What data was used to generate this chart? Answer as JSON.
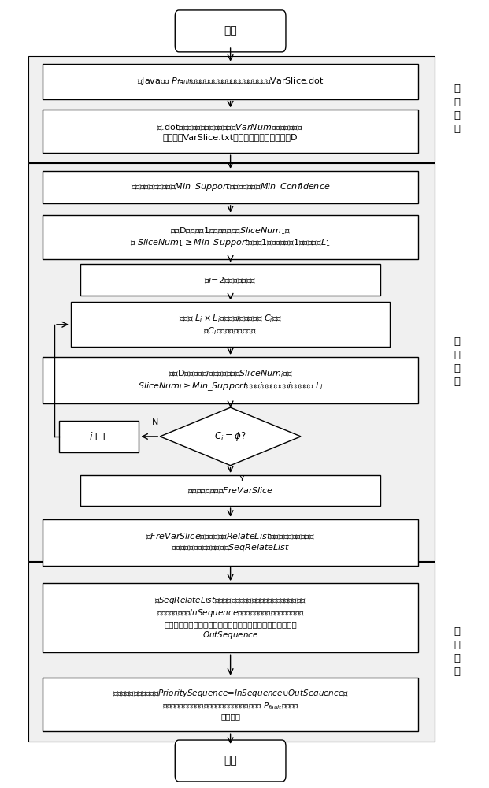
{
  "bg_color": "#ffffff",
  "fig_w": 6.21,
  "fig_h": 10.0,
  "dpi": 100,
  "xlim": [
    0,
    1
  ],
  "ylim": [
    0,
    1
  ],
  "start_text": "开始",
  "end_text": "结束",
  "box1_text_line1": "对Java程序 $P_{fault}$预处理，进行变量切片得到程序切片数据VarSlice.dot",
  "box2_text": "从.dot文件中依次提取变量切片行号$\\mathit{VarNum}$，构成变量切片\n行号信息VarSlice.txt，并将其作为事物数据库D",
  "box3_text": "假设最小支持度计数为$\\mathit{Min\\_Support}$，最小置信度为$\\mathit{Min\\_Confidence}$",
  "box4_text": "扭描D累计候选1项集的支持计数$\\mathit{SliceNum}_1$，\n由 $\\mathit{SliceNum}_1\\geq \\mathit{Min\\_Support}$的候选1项集确定频繁1项集的集合$L_1$",
  "box5_text": "令$i$=2，开始逐层搜索",
  "box6_text": "由连接 $L_i\\times L_i$产生候选$i$项集的集合 $C_i$，并\n从$C_i$中删除非频繁集候选",
  "box7_text": "扭描D，累计候选$i$项集的支持计数$\\mathit{SliceNum}_i$，由\n$\\mathit{SliceNum}_i\\geq \\mathit{Min\\_Support}$的候选$i$项集确定频繁$i$项集的集合 $L_i$",
  "diamond_text": "$C_i=\\phi$?",
  "iplus_text": "$i$++",
  "box8_text": "获取所有频繁项集$\\mathit{FreVarSlice}$",
  "box9_text": "由$\\mathit{FreVarSlice}$得到关联规则$\\mathit{RelateList}$，根据置信度由高到低\n进行排序，得到排序关联规则$\\mathit{SeqRelateList}$",
  "box10_text": "对$\\mathit{SeqRelateList}$中的语句按照置信度由高到低的排列顺序，生成检\n查语句优先级次序$\\mathit{InSequence}$，未在关联规则内的语句按照支持度\n由高到低的排列顺序，生成关联规则外的检查语句优先级次序\n$\\mathit{OutSequence}$",
  "box11_text": "总的检查语句优先级次序$\\mathit{PrioritySequence}$=$\\mathit{InSequence}$∪$\\mathit{OutSequence}$，\n依据语句优先级次序越靠前越优先被检查的原则，定位 $P_{fault}$中错误出\n现的位置",
  "sec1_label": "变\n量\n切\n片",
  "sec2_label": "关\n联\n分\n析",
  "sec3_label": "错\n误\n定\n位"
}
